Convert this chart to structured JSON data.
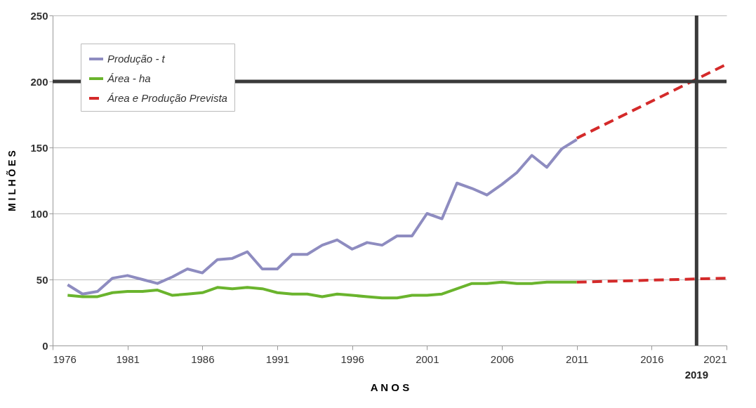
{
  "chart_data": {
    "type": "line",
    "xlabel": "A N O S",
    "ylabel": "M I L H Õ E S",
    "xlim": [
      1976,
      2021
    ],
    "xticks": [
      1976,
      1981,
      1986,
      1991,
      1996,
      2001,
      2006,
      2011,
      2016,
      2021
    ],
    "ylim": [
      0,
      250
    ],
    "yticks": [
      0,
      50,
      100,
      150,
      200,
      250
    ],
    "grid": "y",
    "legend": "top left",
    "series": [
      {
        "name": "Produção - t",
        "color": "#8e8cc0",
        "line_style": "solid",
        "x": [
          1977,
          1978,
          1979,
          1980,
          1981,
          1982,
          1983,
          1984,
          1985,
          1986,
          1987,
          1988,
          1989,
          1990,
          1991,
          1992,
          1993,
          1994,
          1995,
          1996,
          1997,
          1998,
          1999,
          2000,
          2001,
          2002,
          2003,
          2004,
          2005,
          2006,
          2007,
          2008,
          2009,
          2010,
          2011
        ],
        "values": [
          46,
          39,
          41,
          51,
          53,
          50,
          47,
          52,
          58,
          55,
          65,
          66,
          71,
          58,
          58,
          69,
          69,
          76,
          80,
          73,
          78,
          76,
          83,
          83,
          100,
          96,
          123,
          119,
          114,
          122,
          131,
          144,
          135,
          149,
          156
        ]
      },
      {
        "name": "Área - ha",
        "color": "#6ab42d",
        "line_style": "solid",
        "x": [
          1977,
          1978,
          1979,
          1980,
          1981,
          1982,
          1983,
          1984,
          1985,
          1986,
          1987,
          1988,
          1989,
          1990,
          1991,
          1992,
          1993,
          1994,
          1995,
          1996,
          1997,
          1998,
          1999,
          2000,
          2001,
          2002,
          2003,
          2004,
          2005,
          2006,
          2007,
          2008,
          2009,
          2010,
          2011
        ],
        "values": [
          38,
          37,
          37,
          40,
          41,
          41,
          42,
          38,
          39,
          40,
          44,
          43,
          44,
          43,
          40,
          39,
          39,
          37,
          39,
          38,
          37,
          36,
          36,
          38,
          38,
          39,
          43,
          47,
          47,
          48,
          47,
          47,
          48,
          48,
          48
        ]
      },
      {
        "name": "Área e Produção Prevista",
        "color": "#d42a2a",
        "line_style": "dashed",
        "x": [
          2011,
          2021
        ],
        "values": [
          157,
          213
        ]
      },
      {
        "color": "#d42a2a",
        "line_style": "dashed",
        "x": [
          2011,
          2021
        ],
        "values": [
          48,
          51
        ]
      }
    ],
    "ref_lines": [
      {
        "axis": "y",
        "value": 200,
        "color": "#3a3a3a"
      },
      {
        "axis": "x",
        "value": 2019,
        "label": "2019",
        "color": "#3a3a3a"
      }
    ]
  }
}
